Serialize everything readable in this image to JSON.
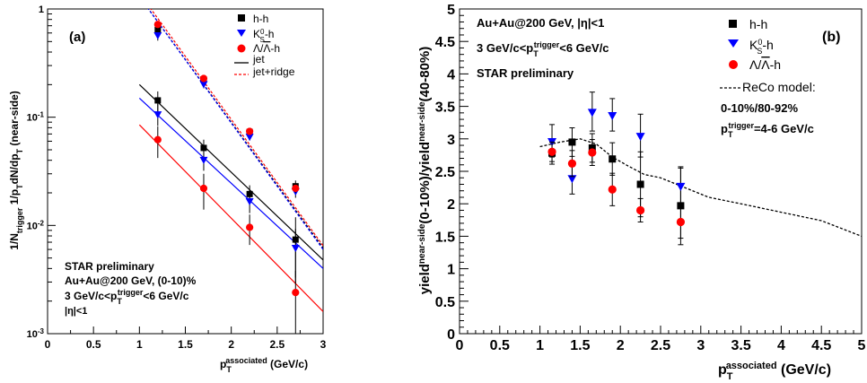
{
  "chart_data": [
    {
      "type": "scatter",
      "panel_label": "(a)",
      "ylabel": "1/N_trigger 1/p_T dN/dp_T (near-side)",
      "xlabel": "p_T^associated (GeV/c)",
      "xlim": [
        0,
        3
      ],
      "ylim": [
        0.001,
        1
      ],
      "yscale": "log",
      "x_ticks": [
        "0",
        "0.5",
        "1",
        "1.5",
        "2",
        "2.5",
        "3"
      ],
      "y_ticks": [
        "10^-3",
        "10^-2",
        "10^-1",
        "1"
      ],
      "legend_position": "top-right",
      "legend": [
        "h-h",
        "K_S^0-h",
        "Λ/Λ̄-h",
        "jet",
        "jet+ridge"
      ],
      "annotation": [
        "STAR preliminary",
        "Au+Au@200 GeV, (0-10)%",
        "3 GeV/c<p_T^trigger<6 GeV/c",
        "|η|<1"
      ],
      "series": [
        {
          "name": "h-h",
          "color": "#000000",
          "marker": "square",
          "x": [
            1.2,
            1.7,
            2.2,
            2.7
          ],
          "values": [
            0.64,
            0.223,
            0.073,
            0.023
          ],
          "err_lo": [
            0.08,
            0.02,
            0.006,
            0.003
          ],
          "err_hi": [
            0.08,
            0.02,
            0.006,
            0.003
          ]
        },
        {
          "name": "K_S^0-h",
          "color": "#0000ff",
          "marker": "triangle-down",
          "x": [
            1.2,
            1.7,
            2.2,
            2.7
          ],
          "values": [
            0.58,
            0.205,
            0.067,
            0.021
          ],
          "err_lo": [
            0.07,
            0.02,
            0.006,
            0.003
          ],
          "err_hi": [
            0.07,
            0.02,
            0.006,
            0.003
          ]
        },
        {
          "name": "Λ/Λ̄-h",
          "color": "#ff0000",
          "marker": "circle",
          "x": [
            1.2,
            1.7,
            2.2,
            2.7
          ],
          "values": [
            0.72,
            0.228,
            0.074,
            0.022
          ],
          "err_lo": [
            0.05,
            0.015,
            0.005,
            0.002
          ],
          "err_hi": [
            0.05,
            0.015,
            0.005,
            0.002
          ]
        },
        {
          "name": "h-h",
          "color": "#000000",
          "marker": "square",
          "x": [
            1.2,
            1.7,
            2.2,
            2.7
          ],
          "values": [
            0.143,
            0.052,
            0.0195,
            0.0074
          ],
          "err_lo": [
            0.03,
            0.01,
            0.004,
            0.0045
          ],
          "err_hi": [
            0.03,
            0.01,
            0.004,
            0.0045
          ]
        },
        {
          "name": "K_S^0-h",
          "color": "#0000ff",
          "marker": "triangle-down",
          "x": [
            1.2,
            1.7,
            2.2,
            2.7
          ],
          "values": [
            0.108,
            0.041,
            0.017,
            0.0063
          ],
          "err_lo": [
            0.025,
            0.009,
            0.004,
            0.003
          ],
          "err_hi": [
            0.025,
            0.009,
            0.004,
            0.003
          ]
        },
        {
          "name": "Λ/Λ̄-h",
          "color": "#ff0000",
          "marker": "circle",
          "x": [
            1.2,
            1.7,
            2.2,
            2.7
          ],
          "values": [
            0.062,
            0.022,
            0.0096,
            0.0024
          ],
          "err_lo": [
            0.02,
            0.008,
            0.003,
            0.0014
          ],
          "err_hi": [
            0.02,
            0.008,
            0.003,
            0.0014
          ]
        }
      ],
      "fit_lines": [
        {
          "name": "jet",
          "style": "solid",
          "color": "#000000",
          "x": [
            1.0,
            3.0
          ],
          "values": [
            0.2,
            0.0048
          ]
        },
        {
          "name": "jet",
          "style": "solid",
          "color": "#0000ff",
          "x": [
            1.0,
            3.0
          ],
          "values": [
            0.15,
            0.004
          ]
        },
        {
          "name": "jet",
          "style": "solid",
          "color": "#ff0000",
          "x": [
            1.0,
            3.0
          ],
          "values": [
            0.085,
            0.0016
          ]
        },
        {
          "name": "jet+ridge",
          "style": "dashed",
          "color": "#000000",
          "x": [
            1.0,
            3.0
          ],
          "values": [
            1.3,
            0.0062
          ]
        },
        {
          "name": "jet+ridge",
          "style": "dashed",
          "color": "#0000ff",
          "x": [
            1.0,
            3.0
          ],
          "values": [
            1.3,
            0.006
          ]
        },
        {
          "name": "jet+ridge",
          "style": "dashed",
          "color": "#ff0000",
          "x": [
            1.0,
            3.0
          ],
          "values": [
            1.4,
            0.0065
          ]
        }
      ]
    },
    {
      "type": "scatter",
      "panel_label": "(b)",
      "ylabel": "yield^near-side(0-10%)/yield^near-side(40-80%)",
      "xlabel": "p_T^associated (GeV/c)",
      "xlim": [
        0,
        5
      ],
      "ylim": [
        0,
        5
      ],
      "x_ticks": [
        "0",
        "0.5",
        "1",
        "1.5",
        "2",
        "2.5",
        "3",
        "3.5",
        "4",
        "4.5",
        "5"
      ],
      "y_ticks": [
        "0",
        "0.5",
        "1",
        "1.5",
        "2",
        "2.5",
        "3",
        "3.5",
        "4",
        "4.5",
        "5"
      ],
      "legend_position": "top-right",
      "legend": [
        "h-h",
        "K_S^0-h",
        "Λ/Λ̄-h",
        "ReCo model:"
      ],
      "annotation": [
        "Au+Au@200 GeV, |η|<1",
        "3 GeV/c<p_T^trigger<6 GeV/c",
        "STAR preliminary"
      ],
      "model_note": [
        "0-10%/80-92%",
        "p_T^trigger=4-6 GeV/c"
      ],
      "series": [
        {
          "name": "h-h",
          "color": "#000000",
          "marker": "square",
          "x": [
            1.15,
            1.4,
            1.65,
            1.9,
            2.25,
            2.75
          ],
          "values": [
            2.78,
            2.95,
            2.86,
            2.69,
            2.3,
            1.97
          ],
          "err": [
            0.17,
            0.22,
            0.22,
            0.25,
            0.5,
            0.6
          ]
        },
        {
          "name": "K_S^0-h",
          "color": "#0000ff",
          "marker": "triangle-down",
          "x": [
            1.15,
            1.4,
            1.65,
            1.9,
            2.25,
            2.75
          ],
          "values": [
            2.97,
            2.4,
            3.42,
            3.37,
            3.05,
            2.28
          ],
          "err": [
            0.25,
            0.25,
            0.3,
            0.25,
            0.33,
            0.27
          ]
        },
        {
          "name": "Λ/Λ̄-h",
          "color": "#ff0000",
          "marker": "circle",
          "x": [
            1.15,
            1.4,
            1.65,
            1.9,
            2.25,
            2.75
          ],
          "values": [
            2.8,
            2.62,
            2.79,
            2.22,
            1.9,
            1.72
          ],
          "err": [
            0.15,
            0.2,
            0.2,
            0.25,
            0.18,
            0.25
          ]
        }
      ],
      "model_curve": {
        "name": "ReCo model",
        "style": "dashed",
        "color": "#000000",
        "x": [
          1.0,
          1.25,
          1.5,
          1.7,
          1.9,
          2.1,
          2.3,
          2.5,
          2.7,
          2.9,
          3.1,
          3.5,
          4.0,
          4.5,
          5.0
        ],
        "values": [
          2.88,
          2.95,
          3.0,
          2.92,
          2.72,
          2.58,
          2.45,
          2.4,
          2.3,
          2.2,
          2.1,
          2.0,
          1.87,
          1.74,
          1.5
        ]
      }
    }
  ]
}
